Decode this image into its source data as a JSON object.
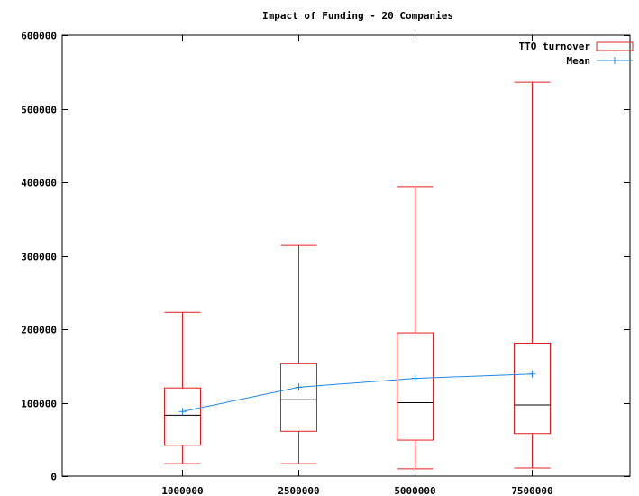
{
  "chart_data": {
    "type": "box",
    "title": "Impact of Funding - 20 Companies",
    "xlabel": "",
    "ylabel": "",
    "ylim": [
      0,
      600000
    ],
    "yticks": [
      "0",
      "100000",
      "200000",
      "300000",
      "400000",
      "500000",
      "600000"
    ],
    "categories": [
      "1000000",
      "2500000",
      "5000000",
      "7500000"
    ],
    "legend_position": "top-right",
    "grid": false,
    "series": [
      {
        "name": "TTO turnover",
        "kind": "box",
        "color": "#e02020",
        "boxes": [
          {
            "min": 17000,
            "q1": 42000,
            "median": 83000,
            "q3": 120000,
            "max": 223000
          },
          {
            "min": 17000,
            "q1": 61000,
            "median": 104000,
            "q3": 153000,
            "max": 314000
          },
          {
            "min": 10000,
            "q1": 49000,
            "median": 100000,
            "q3": 195000,
            "max": 394000
          },
          {
            "min": 11000,
            "q1": 58000,
            "median": 97000,
            "q3": 181000,
            "max": 536000
          }
        ]
      },
      {
        "name": "Mean",
        "kind": "line",
        "color": "#1e88e5",
        "values": [
          88000,
          121000,
          133000,
          139000
        ]
      }
    ]
  }
}
